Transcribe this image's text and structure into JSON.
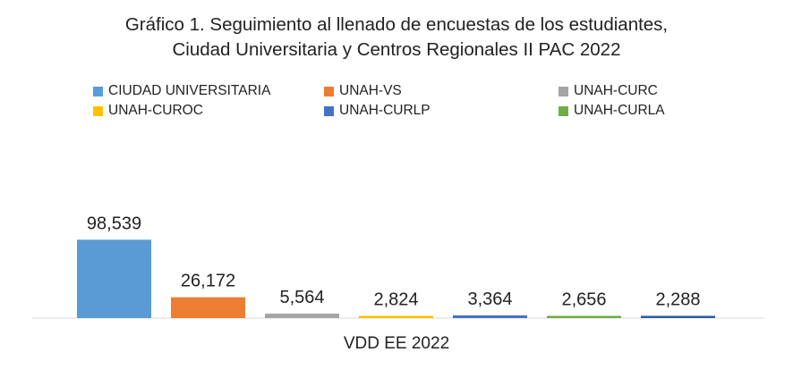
{
  "chart_data": {
    "type": "bar",
    "title": "Gráfico 1.  Seguimiento al llenado de encuestas de los estudiantes,",
    "subtitle": "Ciudad Universitaria y Centros Regionales II PAC 2022",
    "xlabel": "VDD EE 2022",
    "ylabel": "",
    "ylim": [
      0,
      100000
    ],
    "grid": false,
    "legend_position": "top",
    "series": [
      {
        "name": "CIUDAD UNIVERSITARIA",
        "value": 98539,
        "label": "98,539",
        "color": "#5B9BD5"
      },
      {
        "name": "UNAH-VS",
        "value": 26172,
        "label": "26,172",
        "color": "#ED7D31"
      },
      {
        "name": "UNAH-CURC",
        "value": 5564,
        "label": "5,564",
        "color": "#A5A5A5"
      },
      {
        "name": "UNAH-CUROC",
        "value": 2824,
        "label": "2,824",
        "color": "#FFC000"
      },
      {
        "name": "UNAH-CURLP",
        "value": 3364,
        "label": "3,364",
        "color": "#4472C4"
      },
      {
        "name": "UNAH-CURLA",
        "value": 2656,
        "label": "2,656",
        "color": "#70AD47"
      },
      {
        "name": "",
        "value": 2288,
        "label": "2,288",
        "color": "#2E5C9E"
      }
    ]
  }
}
